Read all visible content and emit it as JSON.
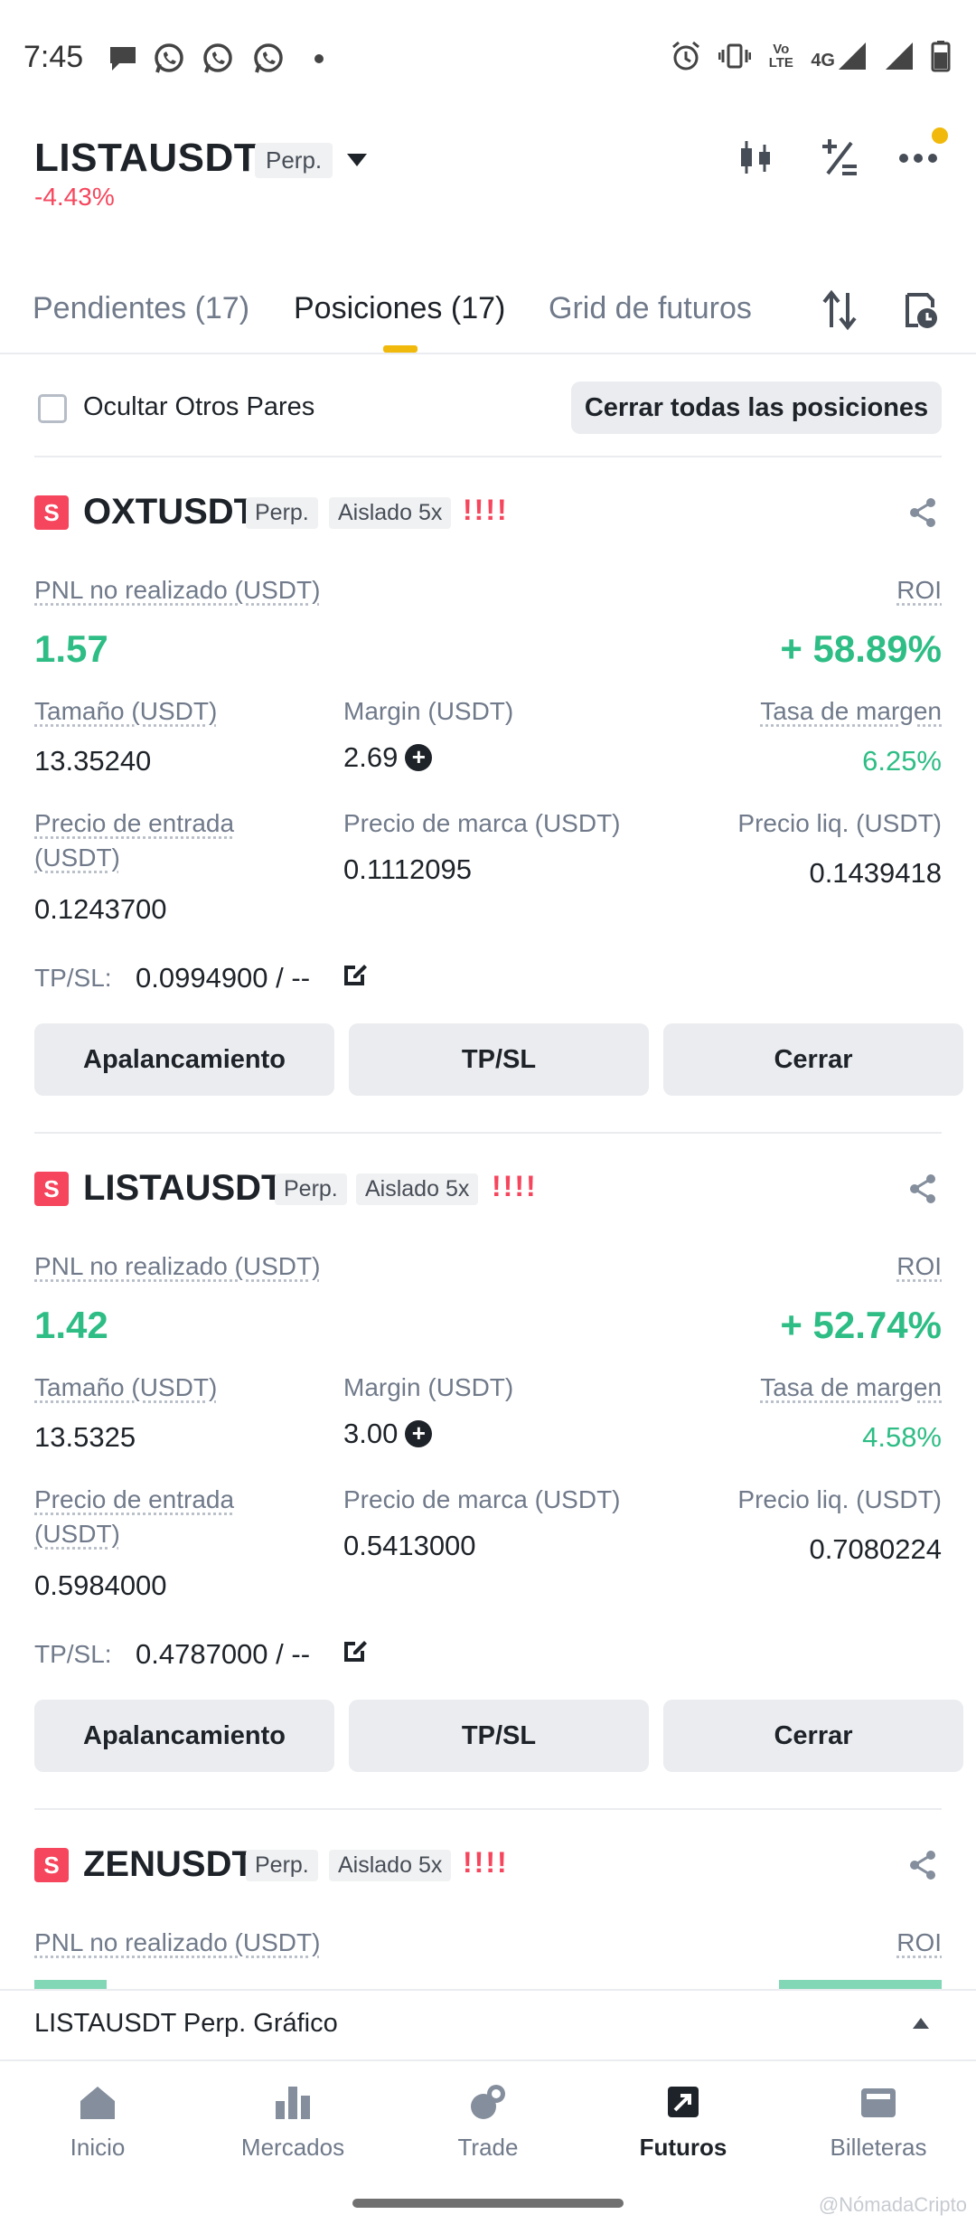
{
  "status_bar": {
    "time": "7:45",
    "network": "4G",
    "volte": "Vo LTE"
  },
  "header": {
    "pair": "LISTAUSDT",
    "tag": "Perp.",
    "change": "-4.43%"
  },
  "tabs": [
    {
      "label": "Pendientes (17)"
    },
    {
      "label": "Posiciones (17)"
    },
    {
      "label": "Grid de futuros"
    }
  ],
  "filter": {
    "hide_label": "Ocultar Otros Pares",
    "close_all": "Cerrar todas las posiciones"
  },
  "labels": {
    "pnl": "PNL no realizado (USDT)",
    "roi": "ROI",
    "size": "Tamaño (USDT)",
    "margin": "Margin (USDT)",
    "margin_rate": "Tasa de margen",
    "entry": "Precio de entrada",
    "entry_unit": "(USDT)",
    "mark": "Precio de marca (USDT)",
    "liq": "Precio liq. (USDT)",
    "tpsl": "TP/SL:"
  },
  "buttons": {
    "leverage": "Apalancamiento",
    "tpsl": "TP/SL",
    "close": "Cerrar"
  },
  "positions": [
    {
      "badge": "S",
      "symbol": "OXTUSDT",
      "type": "Perp.",
      "mode": "Aislado 5x",
      "alert": "!!!!",
      "pnl": "1.57",
      "roi": "+ 58.89%",
      "size": "13.35240",
      "margin": "2.69",
      "margin_rate": "6.25%",
      "entry": "0.1243700",
      "mark": "0.1112095",
      "liq": "0.1439418",
      "tpsl": "0.0994900 / --"
    },
    {
      "badge": "S",
      "symbol": "LISTAUSDT",
      "type": "Perp.",
      "mode": "Aislado 5x",
      "alert": "!!!!",
      "pnl": "1.42",
      "roi": "+ 52.74%",
      "size": "13.5325",
      "margin": "3.00",
      "margin_rate": "4.58%",
      "entry": "0.5984000",
      "mark": "0.5413000",
      "liq": "0.7080224",
      "tpsl": "0.4787000 / --"
    },
    {
      "badge": "S",
      "symbol": "ZENUSDT",
      "type": "Perp.",
      "mode": "Aislado 5x",
      "alert": "!!!!"
    }
  ],
  "chart_bar": {
    "label": "LISTAUSDT Perp. Gráfico"
  },
  "nav": [
    {
      "label": "Inicio",
      "icon": "home-icon"
    },
    {
      "label": "Mercados",
      "icon": "markets-icon"
    },
    {
      "label": "Trade",
      "icon": "trade-icon"
    },
    {
      "label": "Futuros",
      "icon": "futures-icon"
    },
    {
      "label": "Billeteras",
      "icon": "wallet-icon"
    }
  ],
  "watermark": "@NómadaCripto",
  "colors": {
    "accent": "#f0b90b",
    "up": "#2ebd85",
    "down": "#f6465d"
  }
}
